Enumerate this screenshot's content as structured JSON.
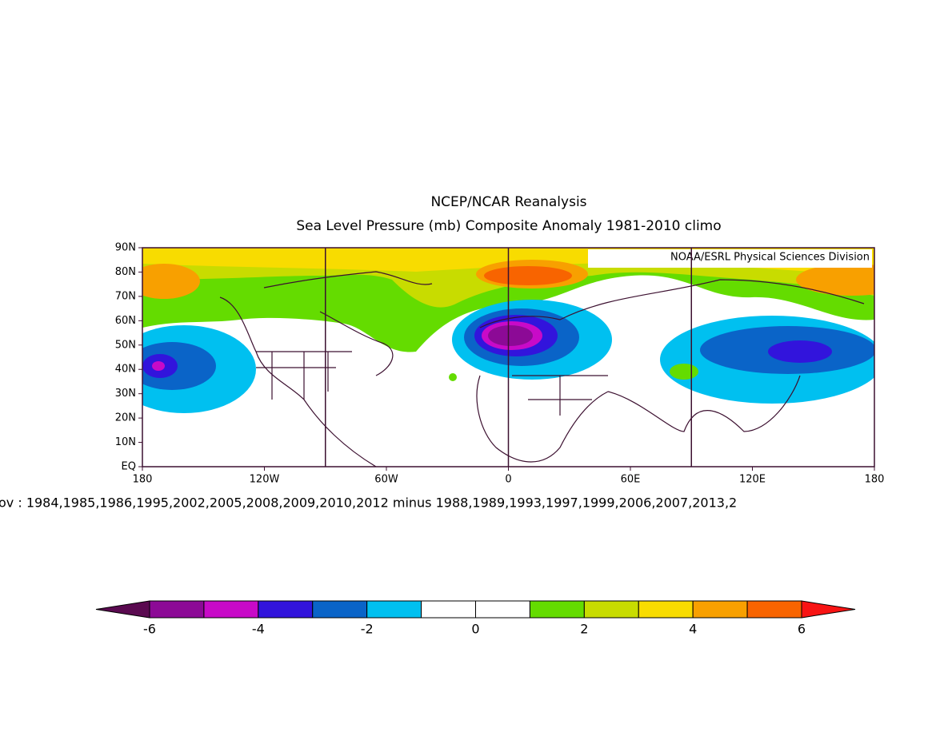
{
  "header": {
    "title": "NCEP/NCAR Reanalysis",
    "subtitle": "Sea Level Pressure (mb) Composite Anomaly 1981-2010 climo"
  },
  "map": {
    "credit": "NOAA/ESRL Physical Sciences Division",
    "lonlim": [
      -180,
      180
    ],
    "latlim": [
      0,
      90
    ],
    "lonticks": [
      {
        "value": -180,
        "label": "180"
      },
      {
        "value": -120,
        "label": "120W"
      },
      {
        "value": -60,
        "label": "60W"
      },
      {
        "value": 0,
        "label": "0"
      },
      {
        "value": 60,
        "label": "60E"
      },
      {
        "value": 120,
        "label": "120E"
      },
      {
        "value": 180,
        "label": "180"
      }
    ],
    "latticks": [
      {
        "value": 0,
        "label": "EQ"
      },
      {
        "value": 10,
        "label": "10N"
      },
      {
        "value": 20,
        "label": "20N"
      },
      {
        "value": 30,
        "label": "30N"
      },
      {
        "value": 40,
        "label": "40N"
      },
      {
        "value": 50,
        "label": "50N"
      },
      {
        "value": 60,
        "label": "60N"
      },
      {
        "value": 70,
        "label": "70N"
      },
      {
        "value": 80,
        "label": "80N"
      },
      {
        "value": 90,
        "label": "90N"
      }
    ],
    "meridians": [
      -90,
      0,
      90
    ],
    "composite": "ov : 1984,1985,1986,1995,2002,2005,2008,2009,2010,2012 minus 1988,1989,1993,1997,1999,2006,2007,2013,2"
  },
  "colorbar": {
    "levels": [
      -6,
      -5,
      -4,
      -3,
      -2,
      -1,
      0,
      1,
      2,
      3,
      4,
      5,
      6
    ],
    "colors": [
      "#5a0a50",
      "#8c0a96",
      "#c80ac8",
      "#3214dc",
      "#0a64c8",
      "#00c0f0",
      "#ffffff",
      "#ffffff",
      "#64dc00",
      "#c8dc00",
      "#f8dc00",
      "#f8a000",
      "#f86400",
      "#f81414"
    ],
    "ticks": [
      -6,
      -4,
      -2,
      0,
      2,
      4,
      6
    ]
  }
}
